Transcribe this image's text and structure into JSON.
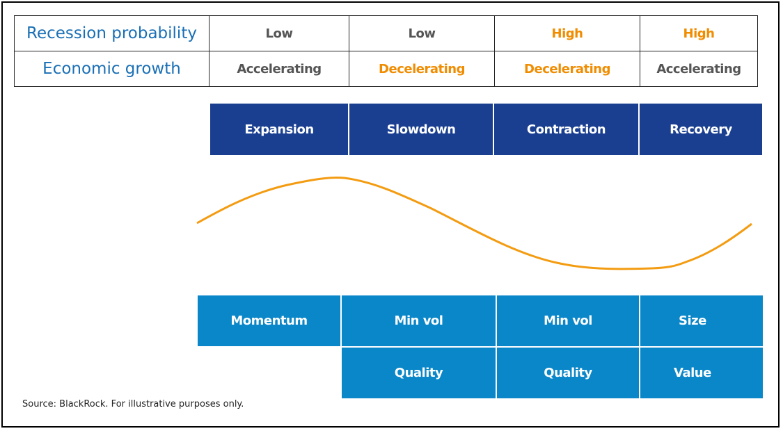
{
  "table": {
    "recession_label": "Recession probability",
    "growth_label": "Economic growth",
    "recession": [
      "Low",
      "Low",
      "High",
      "High"
    ],
    "growth": [
      "Accelerating",
      "Decelerating",
      "Decelerating",
      "Accelerating"
    ]
  },
  "phases": [
    "Expansion",
    "Slowdown",
    "Contraction",
    "Recovery"
  ],
  "factors": {
    "row1": [
      "Momentum",
      "Min vol",
      "Min vol",
      "Size"
    ],
    "row2": [
      "Quality",
      "Quality",
      "Value"
    ]
  },
  "source": "Source: BlackRock. For illustrative purposes only.",
  "colors": {
    "label": "#1a6fb5",
    "highlight": "#f08c00",
    "phase": "#1a3f91",
    "factor": "#0a87c9",
    "curve": "#f39c12"
  }
}
